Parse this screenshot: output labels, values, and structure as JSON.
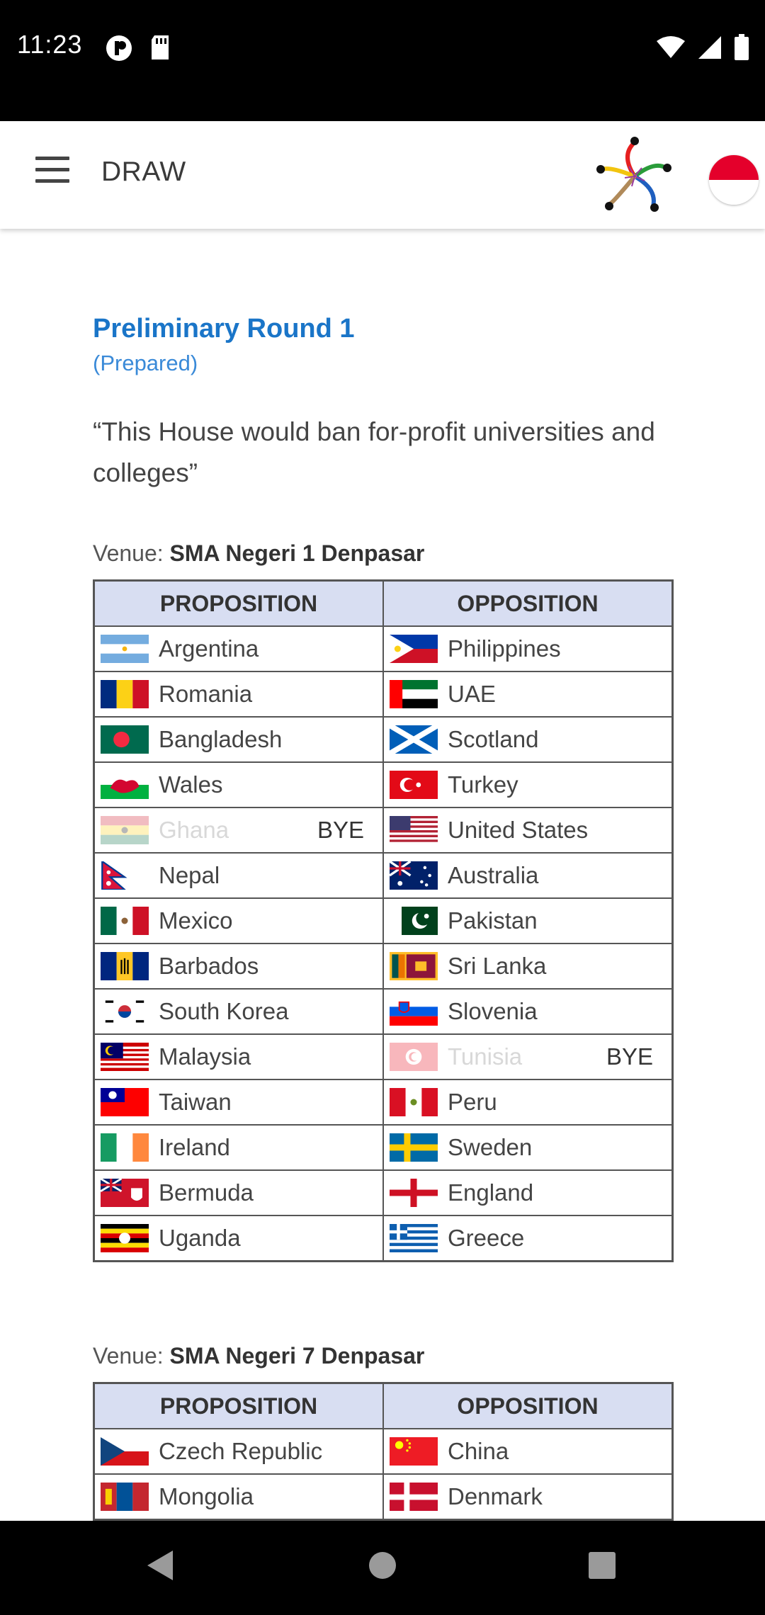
{
  "status_bar": {
    "time": "11:23"
  },
  "app_bar": {
    "title": "DRAW"
  },
  "content": {
    "round_title": "Preliminary Round 1",
    "round_subtitle": "(Prepared)",
    "motion": "“This House would ban for-profit universities and colleges”",
    "venues": [
      {
        "prefix": "Venue: ",
        "name": "SMA Negeri 1 Denpasar",
        "headers": {
          "proposition": "PROPOSITION",
          "opposition": "OPPOSITION"
        },
        "rows": [
          {
            "prop": "Argentina",
            "opp": "Philippines"
          },
          {
            "prop": "Romania",
            "opp": "UAE"
          },
          {
            "prop": "Bangladesh",
            "opp": "Scotland"
          },
          {
            "prop": "Wales",
            "opp": "Turkey"
          },
          {
            "prop": "Ghana",
            "prop_bye": "BYE",
            "opp": "United States"
          },
          {
            "prop": "Nepal",
            "opp": "Australia"
          },
          {
            "prop": "Mexico",
            "opp": "Pakistan"
          },
          {
            "prop": "Barbados",
            "opp": "Sri Lanka"
          },
          {
            "prop": "South Korea",
            "opp": "Slovenia"
          },
          {
            "prop": "Malaysia",
            "opp": "Tunisia",
            "opp_bye": "BYE"
          },
          {
            "prop": "Taiwan",
            "opp": "Peru"
          },
          {
            "prop": "Ireland",
            "opp": "Sweden"
          },
          {
            "prop": "Bermuda",
            "opp": "England"
          },
          {
            "prop": "Uganda",
            "opp": "Greece"
          }
        ]
      },
      {
        "prefix": "Venue: ",
        "name": "SMA Negeri 7 Denpasar",
        "headers": {
          "proposition": "PROPOSITION",
          "opposition": "OPPOSITION"
        },
        "rows": [
          {
            "prop": "Czech Republic",
            "opp": "China"
          },
          {
            "prop": "Mongolia",
            "opp": "Denmark"
          }
        ]
      }
    ]
  }
}
